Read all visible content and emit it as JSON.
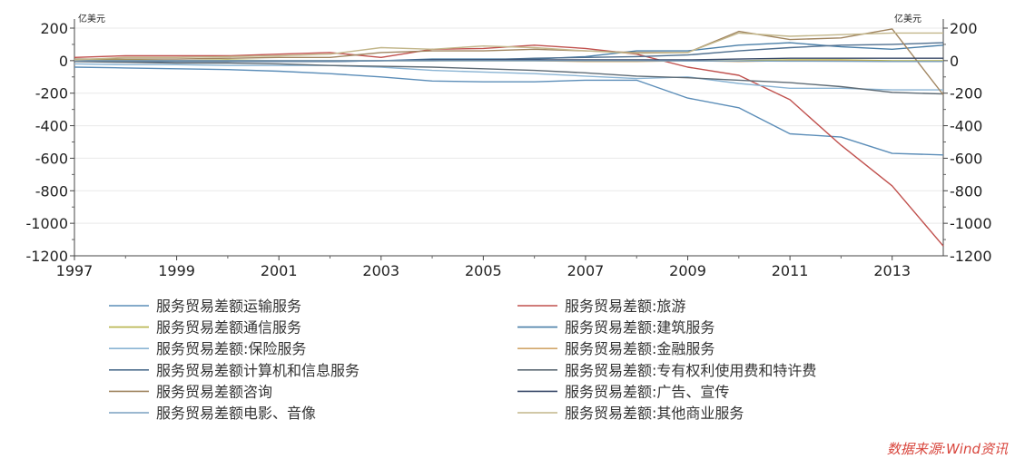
{
  "chart_data": {
    "type": "line",
    "unit_left": "亿美元",
    "unit_right": "亿美元",
    "x_ticks": [
      "1997",
      "1999",
      "2001",
      "2003",
      "2005",
      "2007",
      "2009",
      "2011",
      "2013"
    ],
    "y_ticks": [
      "200",
      "0",
      "-200",
      "-400",
      "-600",
      "-800",
      "-1000",
      "-1200"
    ],
    "xlim": [
      1997,
      2014
    ],
    "ylim": [
      -1200,
      200
    ],
    "grid": true,
    "legend_position": "bottom",
    "source": "数据来源:Wind资讯",
    "series": [
      {
        "name": "服务贸易差额运输服务",
        "color": "#5b8db8",
        "x": [
          1997,
          1998,
          1999,
          2000,
          2001,
          2002,
          2003,
          2004,
          2005,
          2006,
          2007,
          2008,
          2009,
          2010,
          2011,
          2012,
          2013,
          2014
        ],
        "y": [
          -40,
          -45,
          -50,
          -55,
          -65,
          -80,
          -100,
          -125,
          -130,
          -130,
          -120,
          -120,
          -230,
          -290,
          -450,
          -470,
          -570,
          -580
        ]
      },
      {
        "name": "服务贸易差额:旅游",
        "color": "#c0504d",
        "x": [
          1997,
          1998,
          1999,
          2000,
          2001,
          2002,
          2003,
          2004,
          2005,
          2006,
          2007,
          2008,
          2009,
          2010,
          2011,
          2012,
          2013,
          2014
        ],
        "y": [
          20,
          30,
          30,
          30,
          40,
          50,
          20,
          70,
          75,
          95,
          75,
          40,
          -40,
          -90,
          -240,
          -520,
          -770,
          -1140
        ]
      },
      {
        "name": "服务贸易差额通信服务",
        "color": "#b7b44d",
        "x": [
          1997,
          1998,
          1999,
          2000,
          2001,
          2002,
          2003,
          2004,
          2005,
          2006,
          2007,
          2008,
          2009,
          2010,
          2011,
          2012,
          2013,
          2014
        ],
        "y": [
          5,
          5,
          0,
          5,
          0,
          0,
          0,
          0,
          0,
          0,
          0,
          0,
          0,
          0,
          5,
          5,
          0,
          0
        ]
      },
      {
        "name": "服务贸易差额:建筑服务",
        "color": "#4a7fa8",
        "x": [
          1997,
          1998,
          1999,
          2000,
          2001,
          2002,
          2003,
          2004,
          2005,
          2006,
          2007,
          2008,
          2009,
          2010,
          2011,
          2012,
          2013,
          2014
        ],
        "y": [
          -5,
          -5,
          -5,
          -5,
          -5,
          -5,
          0,
          10,
          10,
          10,
          25,
          60,
          60,
          95,
          110,
          85,
          70,
          95
        ]
      },
      {
        "name": "服务贸易差额:保险服务",
        "color": "#8ab4d4",
        "x": [
          1997,
          1998,
          1999,
          2000,
          2001,
          2002,
          2003,
          2004,
          2005,
          2006,
          2007,
          2008,
          2009,
          2010,
          2011,
          2012,
          2013,
          2014
        ],
        "y": [
          -20,
          -25,
          -25,
          -30,
          -30,
          -30,
          -40,
          -60,
          -70,
          -80,
          -95,
          -110,
          -100,
          -140,
          -170,
          -170,
          -180,
          -180
        ]
      },
      {
        "name": "服务贸易差额:金融服务",
        "color": "#d2a76a",
        "x": [
          1997,
          1998,
          1999,
          2000,
          2001,
          2002,
          2003,
          2004,
          2005,
          2006,
          2007,
          2008,
          2009,
          2010,
          2011,
          2012,
          2013,
          2014
        ],
        "y": [
          0,
          0,
          0,
          0,
          0,
          0,
          0,
          0,
          0,
          0,
          -5,
          -5,
          0,
          -5,
          0,
          0,
          -5,
          -5
        ]
      },
      {
        "name": "服务贸易差额计算机和信息服务",
        "color": "#4f6f8f",
        "x": [
          1997,
          1998,
          1999,
          2000,
          2001,
          2002,
          2003,
          2004,
          2005,
          2006,
          2007,
          2008,
          2009,
          2010,
          2011,
          2012,
          2013,
          2014
        ],
        "y": [
          -5,
          -5,
          -5,
          -5,
          -5,
          -5,
          0,
          0,
          5,
          15,
          20,
          25,
          35,
          60,
          80,
          95,
          100,
          110
        ]
      },
      {
        "name": "服务贸易差额:专有权利使用费和特许费",
        "color": "#5e6b75",
        "x": [
          1997,
          1998,
          1999,
          2000,
          2001,
          2002,
          2003,
          2004,
          2005,
          2006,
          2007,
          2008,
          2009,
          2010,
          2011,
          2012,
          2013,
          2014
        ],
        "y": [
          -5,
          -10,
          -15,
          -15,
          -20,
          -30,
          -35,
          -40,
          -50,
          -60,
          -75,
          -95,
          -105,
          -120,
          -135,
          -160,
          -195,
          -205
        ]
      },
      {
        "name": "服务贸易差额咨询",
        "color": "#a08560",
        "x": [
          1997,
          1998,
          1999,
          2000,
          2001,
          2002,
          2003,
          2004,
          2005,
          2006,
          2007,
          2008,
          2009,
          2010,
          2011,
          2012,
          2013,
          2014
        ],
        "y": [
          10,
          10,
          10,
          15,
          20,
          20,
          50,
          60,
          60,
          70,
          60,
          50,
          50,
          180,
          130,
          140,
          195,
          -210
        ]
      },
      {
        "name": "服务贸易差额:广告、宣传",
        "color": "#3a4a6a",
        "x": [
          1997,
          1998,
          1999,
          2000,
          2001,
          2002,
          2003,
          2004,
          2005,
          2006,
          2007,
          2008,
          2009,
          2010,
          2011,
          2012,
          2013,
          2014
        ],
        "y": [
          0,
          0,
          0,
          0,
          0,
          0,
          0,
          5,
          5,
          5,
          5,
          5,
          5,
          10,
          15,
          15,
          15,
          15
        ]
      },
      {
        "name": "服务贸易差额电影、音像",
        "color": "#7aa0c0",
        "x": [
          1997,
          1998,
          1999,
          2000,
          2001,
          2002,
          2003,
          2004,
          2005,
          2006,
          2007,
          2008,
          2009,
          2010,
          2011,
          2012,
          2013,
          2014
        ],
        "y": [
          0,
          0,
          0,
          0,
          0,
          0,
          0,
          0,
          0,
          0,
          0,
          0,
          -2,
          -2,
          -3,
          -4,
          -5,
          -5
        ]
      },
      {
        "name": "服务贸易差额:其他商业服务",
        "color": "#c2b68a",
        "x": [
          1997,
          1998,
          1999,
          2000,
          2001,
          2002,
          2003,
          2004,
          2005,
          2006,
          2007,
          2008,
          2009,
          2010,
          2011,
          2012,
          2013,
          2014
        ],
        "y": [
          5,
          20,
          20,
          25,
          30,
          40,
          80,
          70,
          90,
          80,
          60,
          45,
          50,
          170,
          150,
          160,
          170,
          170
        ]
      }
    ]
  }
}
